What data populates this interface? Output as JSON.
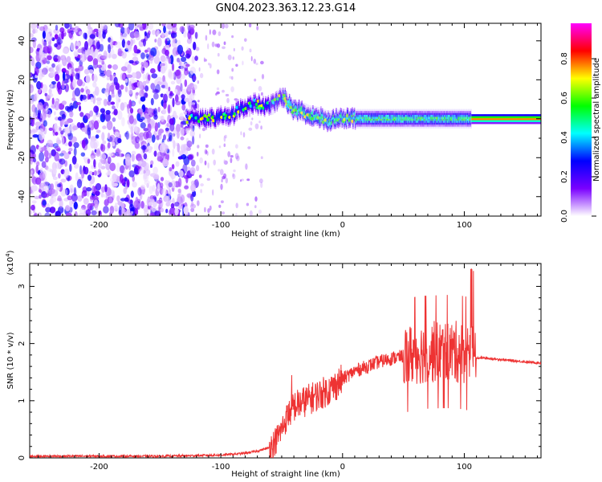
{
  "figure": {
    "title": "GN04.2023.363.12.23.G14"
  },
  "chart_data": [
    {
      "type": "heatmap",
      "xlabel": "Height of straight line (km)",
      "ylabel": "Frequency (Hz)",
      "xlim": [
        -257,
        163
      ],
      "ylim": [
        -50,
        49
      ],
      "xticks": [
        -200,
        -100,
        0,
        100
      ],
      "yticks": [
        -40,
        -20,
        0,
        20,
        40
      ],
      "colorbar": {
        "label": "Normalized spectral amplitude",
        "range": [
          0,
          0.98
        ],
        "ticks": [
          0.0,
          0.2,
          0.4,
          0.6,
          0.8
        ],
        "colormap": [
          "#ffffff",
          "#7a00ff",
          "#0000ff",
          "#00ffff",
          "#00ff00",
          "#ffff00",
          "#ff0000",
          "#ff00ff"
        ]
      },
      "ridge": [
        {
          "x": -128,
          "f": 0
        },
        {
          "x": -110,
          "f": 0
        },
        {
          "x": -100,
          "f": 1
        },
        {
          "x": -90,
          "f": 2
        },
        {
          "x": -85,
          "f": 5
        },
        {
          "x": -78,
          "f": 7
        },
        {
          "x": -72,
          "f": 8
        },
        {
          "x": -65,
          "f": 6
        },
        {
          "x": -58,
          "f": 7
        },
        {
          "x": -52,
          "f": 11
        },
        {
          "x": -47,
          "f": 10
        },
        {
          "x": -42,
          "f": 5
        },
        {
          "x": -35,
          "f": 4
        },
        {
          "x": -28,
          "f": 2
        },
        {
          "x": -20,
          "f": 1
        },
        {
          "x": -12,
          "f": -1
        },
        {
          "x": -5,
          "f": 0
        },
        {
          "x": 20,
          "f": 0
        },
        {
          "x": 60,
          "f": 0
        },
        {
          "x": 100,
          "f": 0
        },
        {
          "x": 163,
          "f": 0
        }
      ]
    },
    {
      "type": "line",
      "xlabel": "Height of straight line (km)",
      "ylabel": "SNR (10 * v/v)",
      "yscale_label": "(x10",
      "yscale_exp": "4",
      "yscale_close": ")",
      "xlim": [
        -257,
        163
      ],
      "ylim": [
        0,
        3.4
      ],
      "xticks": [
        -200,
        -100,
        0,
        100
      ],
      "yticks": [
        0,
        1,
        2,
        3
      ],
      "color": "#ee3333",
      "series": [
        {
          "x": [
            -257,
            -200,
            -150,
            -120,
            -100,
            -80,
            -70,
            -60,
            -55,
            -50,
            -45,
            -40,
            -35,
            -30,
            -25,
            -20,
            -15,
            -10,
            -5,
            0,
            5,
            10,
            20,
            30,
            40,
            50,
            55,
            60,
            65,
            70,
            75,
            80,
            85,
            90,
            95,
            100,
            103,
            106,
            108,
            110,
            115,
            120,
            130,
            140,
            150,
            163
          ],
          "values": [
            0.03,
            0.03,
            0.03,
            0.04,
            0.05,
            0.08,
            0.12,
            0.18,
            0.3,
            0.5,
            0.75,
            0.9,
            0.95,
            1.0,
            1.05,
            1.1,
            1.15,
            1.2,
            1.28,
            1.38,
            1.45,
            1.52,
            1.6,
            1.68,
            1.74,
            1.78,
            1.8,
            1.82,
            1.84,
            1.85,
            1.85,
            1.86,
            1.86,
            1.86,
            1.85,
            1.84,
            1.82,
            1.8,
            1.76,
            1.75,
            1.75,
            1.74,
            1.72,
            1.7,
            1.68,
            1.66
          ]
        }
      ]
    }
  ]
}
